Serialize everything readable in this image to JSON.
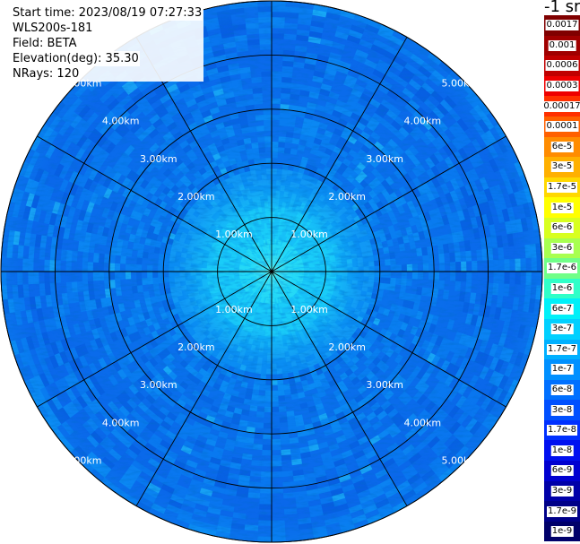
{
  "header": {
    "start_time": "Start time: 2023/08/19 07:27:33",
    "instrument": "WLS200s-181",
    "field": "Field: BETA",
    "elevation": "Elevation(deg): 35.30",
    "nrays": "NRays: 120"
  },
  "colorbar": {
    "unit": "-1 sr",
    "segments": [
      {
        "label": "0.0017",
        "color": "#800000"
      },
      {
        "label": "0.001",
        "color": "#a00000"
      },
      {
        "label": "0.0006",
        "color": "#c00000"
      },
      {
        "label": "0.0003",
        "color": "#ee0000"
      },
      {
        "label": "0.00017",
        "color": "#ff3000"
      },
      {
        "label": "0.0001",
        "color": "#ff6000"
      },
      {
        "label": "6e-5",
        "color": "#ff8c00"
      },
      {
        "label": "3e-5",
        "color": "#ffb000"
      },
      {
        "label": "1.7e-5",
        "color": "#ffd800"
      },
      {
        "label": "1e-5",
        "color": "#ffff00"
      },
      {
        "label": "6e-6",
        "color": "#d8ff20"
      },
      {
        "label": "3e-6",
        "color": "#a8ff50"
      },
      {
        "label": "1.7e-6",
        "color": "#70ff88"
      },
      {
        "label": "1e-6",
        "color": "#30ffc8"
      },
      {
        "label": "6e-7",
        "color": "#00f0f8"
      },
      {
        "label": "3e-7",
        "color": "#00d0ff"
      },
      {
        "label": "1.7e-7",
        "color": "#00b0ff"
      },
      {
        "label": "1e-7",
        "color": "#0090ff"
      },
      {
        "label": "6e-8",
        "color": "#0070ff"
      },
      {
        "label": "3e-8",
        "color": "#0050ff"
      },
      {
        "label": "1.7e-8",
        "color": "#0030ff"
      },
      {
        "label": "1e-8",
        "color": "#0010f0"
      },
      {
        "label": "6e-9",
        "color": "#0000d0"
      },
      {
        "label": "3e-9",
        "color": "#0000a8"
      },
      {
        "label": "1.7e-9",
        "color": "#000088"
      },
      {
        "label": "1e-9",
        "color": "#00006a"
      }
    ]
  },
  "chart_data": {
    "type": "heatmap",
    "projection": "polar PPI",
    "field": "BETA",
    "nrays": 120,
    "range_rings_km": [
      1,
      2,
      3,
      4,
      5
    ],
    "max_range_km": 5.0,
    "spoke_angles_deg": [
      0,
      30,
      60,
      90,
      120,
      150,
      180,
      210,
      240,
      270,
      300,
      330
    ],
    "ring_labels": [
      "1.00km",
      "2.00km",
      "3.00km",
      "4.00km",
      "5.00km"
    ],
    "value_profile": [
      {
        "range_km": 0.5,
        "level": "1.7e-6"
      },
      {
        "range_km": 1.0,
        "level": "3e-7"
      },
      {
        "range_km": 1.6,
        "level": "1.7e-7"
      },
      {
        "range_km": 2.5,
        "level": "6e-8"
      },
      {
        "range_km": 3.5,
        "level": "6e-8"
      },
      {
        "range_km": 4.5,
        "level": "6e-8"
      },
      {
        "range_km": 5.0,
        "level": "1e-7"
      }
    ],
    "colors": {
      "outer": "#0a72ee",
      "mid": "#0a8cf2",
      "inner": "#14d4f8",
      "center": "#60f4ee"
    }
  }
}
